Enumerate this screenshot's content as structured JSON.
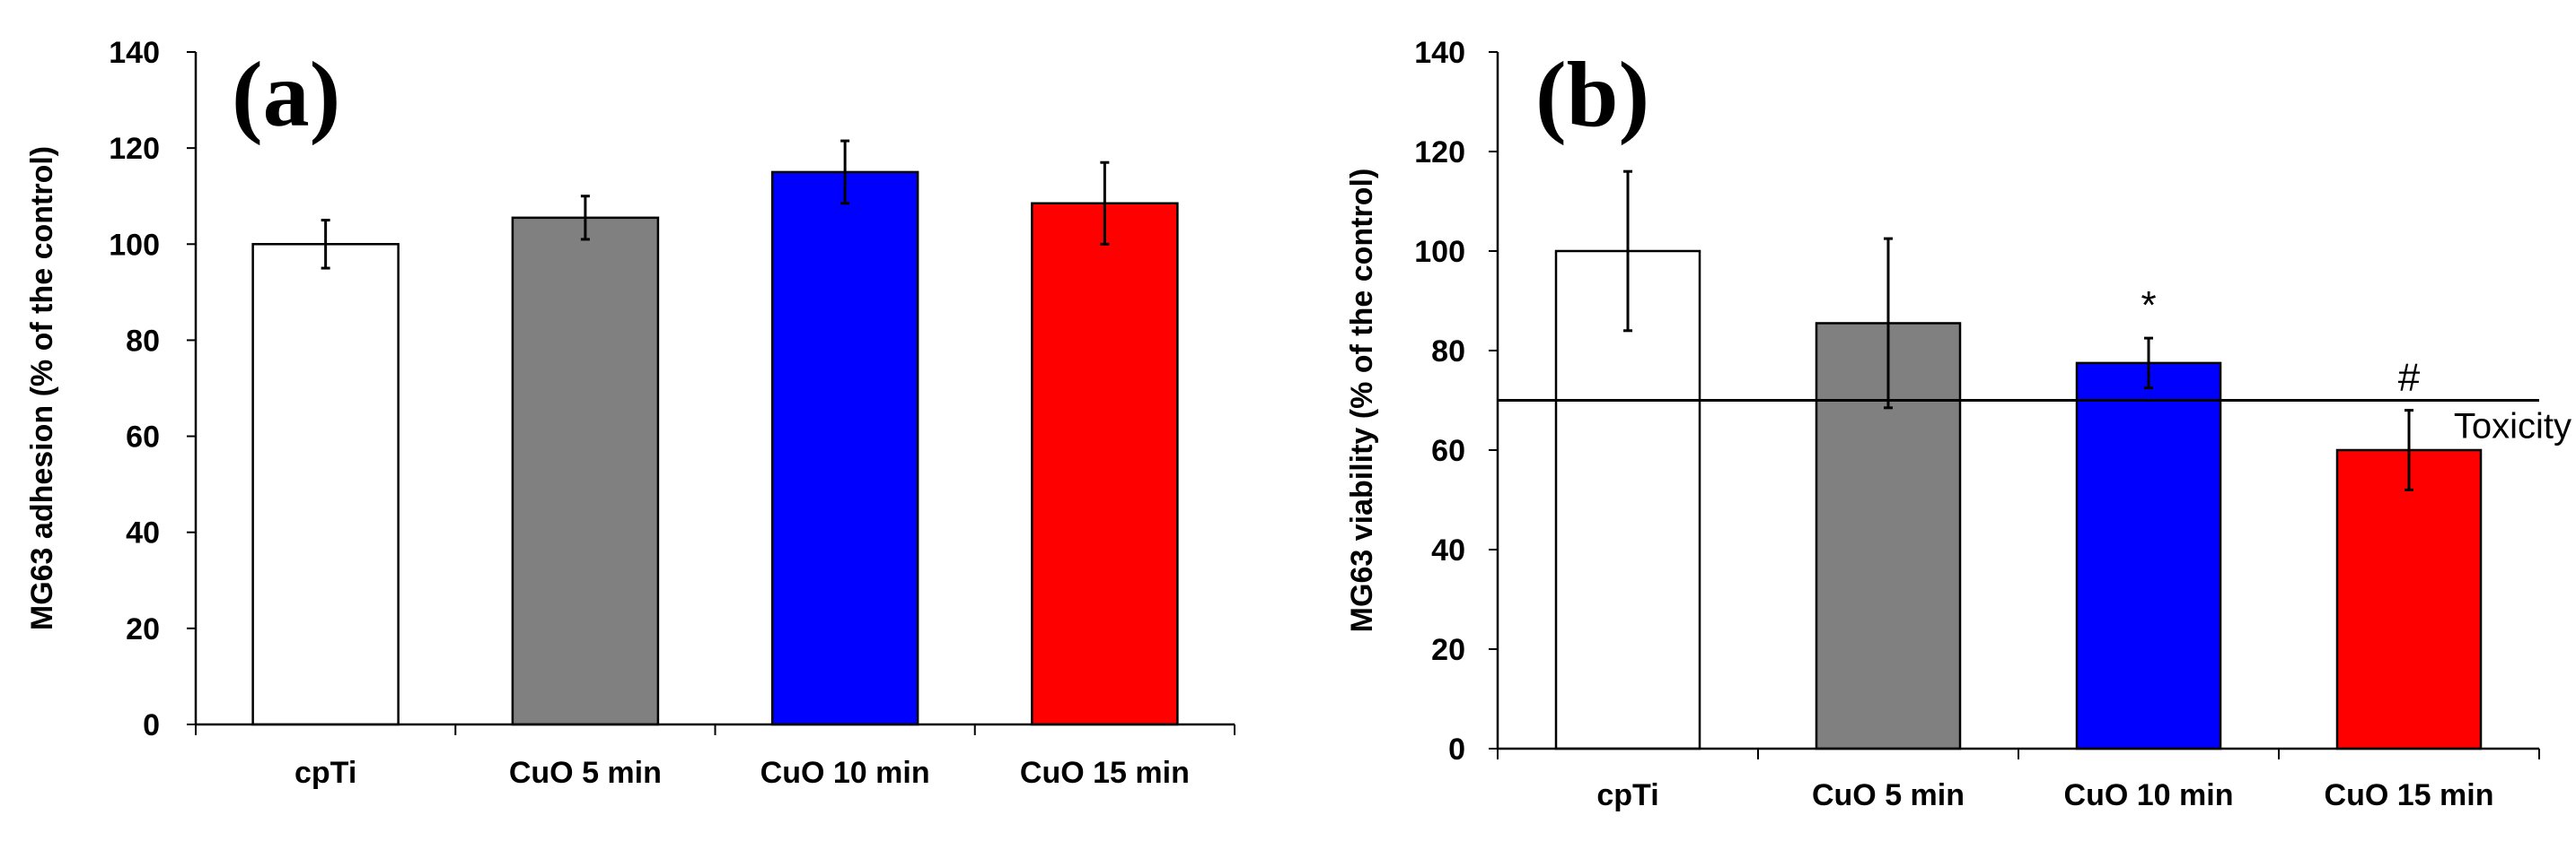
{
  "chart_data": [
    {
      "type": "bar",
      "panel_label": "(a)",
      "categories": [
        "cpTi",
        "CuO 5 min",
        "CuO 10 min",
        "CuO 15 min"
      ],
      "values": [
        100,
        105.5,
        115,
        108.5
      ],
      "errors": [
        5,
        4.5,
        6.5,
        8.5
      ],
      "colors": [
        "#ffffff",
        "#808080",
        "#0000ff",
        "#ff0000"
      ],
      "ylabel": "MG63 adhesion  (% of the control)",
      "xlabel": "",
      "ylim": [
        0,
        140
      ],
      "yticks": [
        0,
        20,
        40,
        60,
        80,
        100,
        120,
        140
      ],
      "annotations": []
    },
    {
      "type": "bar",
      "panel_label": "(b)",
      "categories": [
        "cpTi",
        "CuO 5 min",
        "CuO 10 min",
        "CuO 15 min"
      ],
      "values": [
        100,
        85.5,
        77.5,
        60
      ],
      "errors": [
        16,
        17,
        5,
        8
      ],
      "colors": [
        "#ffffff",
        "#808080",
        "#0000ff",
        "#ff0000"
      ],
      "ylabel": "MG63 viability (% of the control)",
      "xlabel": "",
      "ylim": [
        0,
        140
      ],
      "yticks": [
        0,
        20,
        40,
        60,
        80,
        100,
        120,
        140
      ],
      "threshold": {
        "value": 70,
        "label": "Toxicity"
      },
      "annotations": [
        {
          "category_index": 2,
          "text": "*"
        },
        {
          "category_index": 3,
          "text": "#"
        }
      ]
    }
  ]
}
